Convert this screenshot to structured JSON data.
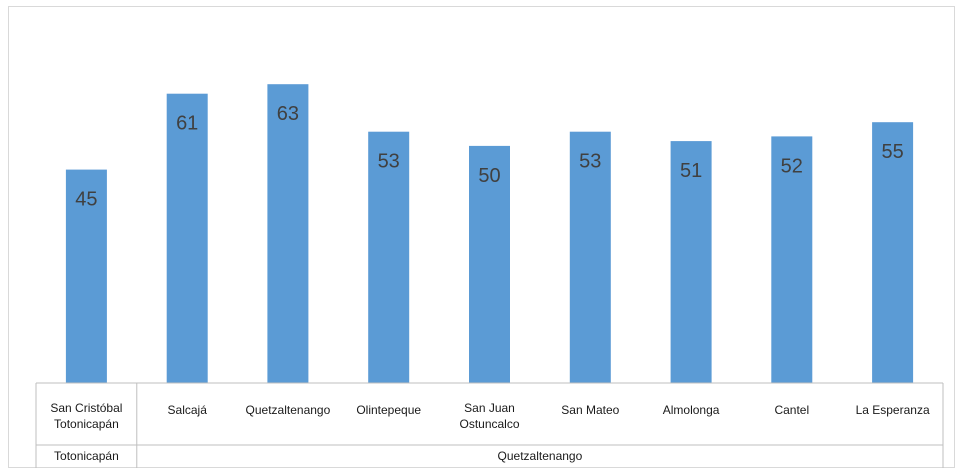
{
  "chart_data": {
    "type": "bar",
    "categories": [
      "San Cristóbal Totonicapán",
      "Salcajá",
      "Quetzaltenango",
      "Olintepeque",
      "San Juan Ostuncalco",
      "San Mateo",
      "Almolonga",
      "Cantel",
      "La Esperanza"
    ],
    "category_label_lines": [
      [
        "San Cristóbal",
        "Totonicapán"
      ],
      [
        "Salcajá"
      ],
      [
        "Quetzaltenango"
      ],
      [
        "Olintepeque"
      ],
      [
        "San Juan",
        "Ostuncalco"
      ],
      [
        "San Mateo"
      ],
      [
        "Almolonga"
      ],
      [
        "Cantel"
      ],
      [
        "La Esperanza"
      ]
    ],
    "values": [
      45,
      61,
      63,
      53,
      50,
      53,
      51,
      52,
      55
    ],
    "groups": [
      {
        "label": "Totonicapán",
        "categories": [
          "San Cristóbal Totonicapán"
        ]
      },
      {
        "label": "Quetzaltenango",
        "categories": [
          "Salcajá",
          "Quetzaltenango",
          "Olintepeque",
          "San Juan Ostuncalco",
          "San Mateo",
          "Almolonga",
          "Cantel",
          "La Esperanza"
        ]
      }
    ],
    "ylim": [
      0,
      66
    ],
    "bar_color": "#5b9bd5",
    "data_labels": true,
    "grid": false,
    "title": "",
    "xlabel": "",
    "ylabel": ""
  }
}
